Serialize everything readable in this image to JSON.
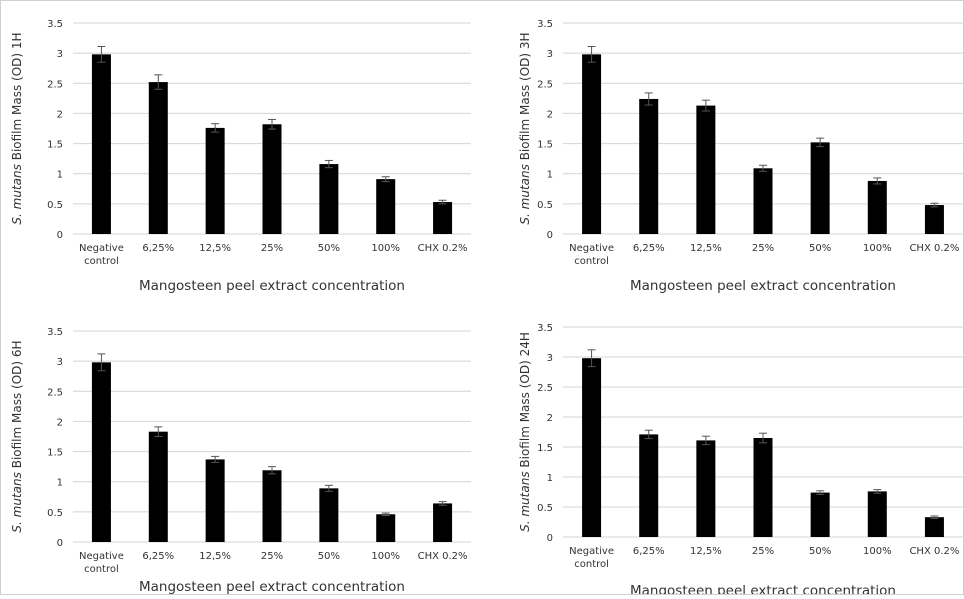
{
  "chart_data": [
    {
      "type": "bar",
      "categories": [
        "Negative control",
        "6,25%",
        "12,5%",
        "25%",
        "50%",
        "100%",
        "CHX 0.2%"
      ],
      "values": [
        2.98,
        2.52,
        1.76,
        1.82,
        1.16,
        0.91,
        0.53
      ],
      "errors": [
        0.13,
        0.12,
        0.07,
        0.08,
        0.06,
        0.04,
        0.03
      ],
      "ylabel_italic": "S. mutans",
      "ylabel_rest": " Biofilm Mass (OD) 1H",
      "xlabel": "Mangosteen peel extract concentration",
      "ylim": [
        0,
        3.5
      ],
      "yticks": [
        "0",
        "0.5",
        "1",
        "1.5",
        "2",
        "2.5",
        "3",
        "3.5"
      ],
      "grid": true,
      "bar_color": "#000000"
    },
    {
      "type": "bar",
      "categories": [
        "Negative control",
        "6,25%",
        "12,5%",
        "25%",
        "50%",
        "100%",
        "CHX 0.2%"
      ],
      "values": [
        2.98,
        2.24,
        2.13,
        1.09,
        1.52,
        0.88,
        0.48
      ],
      "errors": [
        0.13,
        0.1,
        0.09,
        0.05,
        0.07,
        0.05,
        0.03
      ],
      "ylabel_italic": "S. mutans",
      "ylabel_rest": " Biofilm Mass (OD) 3H",
      "xlabel": "Mangosteen peel extract concentration",
      "ylim": [
        0,
        3.5
      ],
      "yticks": [
        "0",
        "0.5",
        "1",
        "1.5",
        "2",
        "2.5",
        "3",
        "3.5"
      ],
      "grid": true,
      "bar_color": "#000000"
    },
    {
      "type": "bar",
      "categories": [
        "Negative control",
        "6,25%",
        "12,5%",
        "25%",
        "50%",
        "100%",
        "CHX 0.2%"
      ],
      "values": [
        2.98,
        1.83,
        1.37,
        1.19,
        0.89,
        0.46,
        0.64
      ],
      "errors": [
        0.14,
        0.08,
        0.05,
        0.06,
        0.05,
        0.02,
        0.03
      ],
      "ylabel_italic": "S. mutans",
      "ylabel_rest": " Biofilm Mass (OD) 6H",
      "xlabel": "Mangosteen peel extract concentration",
      "ylim": [
        0,
        3.5
      ],
      "yticks": [
        "0",
        "0.5",
        "1",
        "1.5",
        "2",
        "2.5",
        "3",
        "3.5"
      ],
      "grid": true,
      "bar_color": "#000000"
    },
    {
      "type": "bar",
      "categories": [
        "Negative control",
        "6,25%",
        "12,5%",
        "25%",
        "50%",
        "100%",
        "CHX 0.2%"
      ],
      "values": [
        2.98,
        1.71,
        1.61,
        1.65,
        0.74,
        0.76,
        0.33
      ],
      "errors": [
        0.14,
        0.07,
        0.07,
        0.08,
        0.03,
        0.03,
        0.02
      ],
      "ylabel_italic": "S. mutans",
      "ylabel_rest": " Biofilm Mass (OD) 24H",
      "xlabel": "Mangosteen peel extract concentration",
      "ylim": [
        0,
        3.5
      ],
      "yticks": [
        "0",
        "0.5",
        "1",
        "1.5",
        "2",
        "2.5",
        "3",
        "3.5"
      ],
      "grid": true,
      "bar_color": "#000000"
    }
  ]
}
